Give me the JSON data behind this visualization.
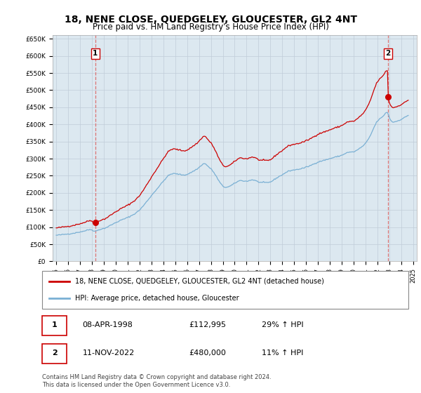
{
  "title": "18, NENE CLOSE, QUEDGELEY, GLOUCESTER, GL2 4NT",
  "subtitle": "Price paid vs. HM Land Registry's House Price Index (HPI)",
  "title_fontsize": 10,
  "subtitle_fontsize": 8.5,
  "ylim": [
    0,
    660000
  ],
  "yticks": [
    0,
    50000,
    100000,
    150000,
    200000,
    250000,
    300000,
    350000,
    400000,
    450000,
    500000,
    550000,
    600000,
    650000
  ],
  "ytick_labels": [
    "£0",
    "£50K",
    "£100K",
    "£150K",
    "£200K",
    "£250K",
    "£300K",
    "£350K",
    "£400K",
    "£450K",
    "£500K",
    "£550K",
    "£600K",
    "£650K"
  ],
  "hpi_color": "#7ab0d4",
  "price_color": "#cc0000",
  "vline_color": "#dd6666",
  "grid_color": "#c0ccd8",
  "bg_color": "#dce8f0",
  "legend_label_price": "18, NENE CLOSE, QUEDGELEY, GLOUCESTER, GL2 4NT (detached house)",
  "legend_label_hpi": "HPI: Average price, detached house, Gloucester",
  "annotation1_num": "1",
  "annotation1_date": "08-APR-1998",
  "annotation1_price": "£112,995",
  "annotation1_hpi": "29% ↑ HPI",
  "annotation1_year": 1998.29,
  "annotation1_value": 112995,
  "annotation2_num": "2",
  "annotation2_date": "11-NOV-2022",
  "annotation2_price": "£480,000",
  "annotation2_hpi": "11% ↑ HPI",
  "annotation2_year": 2022.87,
  "annotation2_value": 480000,
  "footer_text": "Contains HM Land Registry data © Crown copyright and database right 2024.\nThis data is licensed under the Open Government Licence v3.0."
}
